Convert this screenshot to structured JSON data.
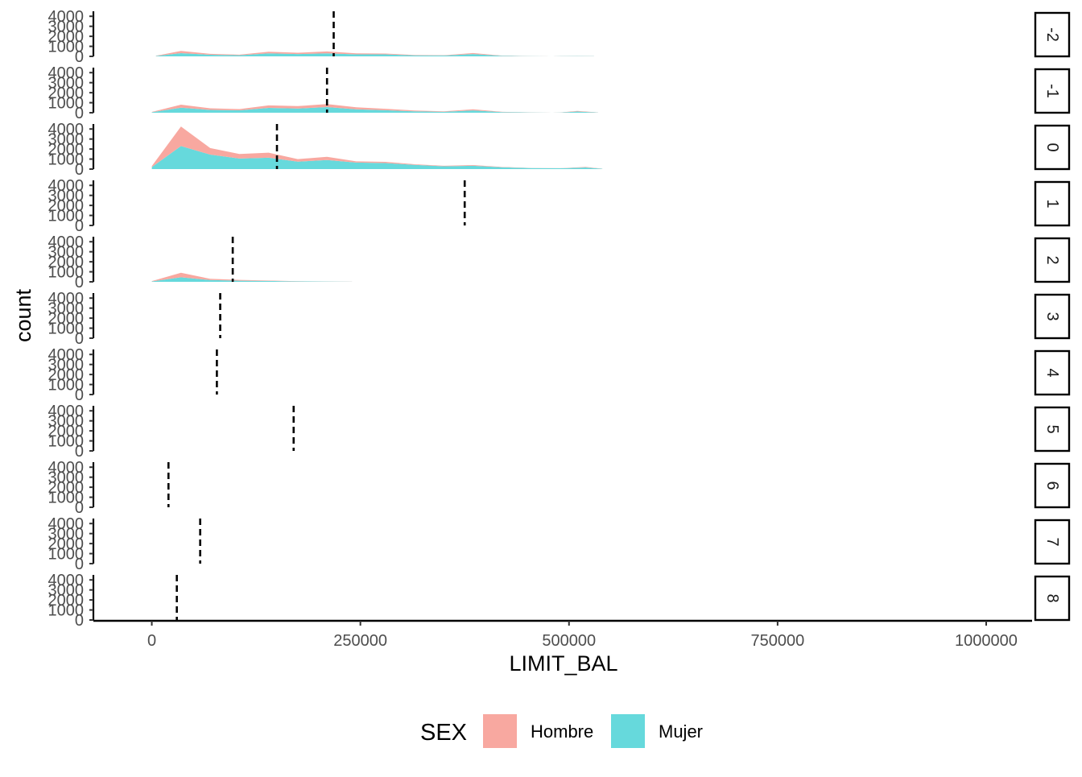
{
  "chart_data": {
    "type": "area",
    "stacked": true,
    "facet_by": "PAY_0",
    "xlabel": "LIMIT_BAL",
    "ylabel": "count",
    "xlim": [
      -70000,
      1055000
    ],
    "ylim": [
      0,
      4500
    ],
    "x_ticks": [
      0,
      250000,
      500000,
      750000,
      1000000
    ],
    "x_tick_labels": [
      "0",
      "250000",
      "500000",
      "750000",
      "1000000"
    ],
    "y_ticks": [
      0,
      1000,
      2000,
      3000,
      4000
    ],
    "y_tick_labels": [
      "0",
      "1000",
      "2000",
      "3000",
      "4000"
    ],
    "grid": false,
    "legend": {
      "title": "SEX",
      "position": "bottom",
      "entries": [
        {
          "label": "Hombre",
          "color": "#F8A8A0"
        },
        {
          "label": "Mujer",
          "color": "#66D9DC"
        }
      ]
    },
    "panels": [
      {
        "label": "-2",
        "mean_line": 218000,
        "x": [
          5000,
          35000,
          70000,
          105000,
          140000,
          175000,
          210000,
          245000,
          280000,
          315000,
          350000,
          385000,
          420000,
          450000,
          480000,
          490000,
          510000,
          530000
        ],
        "series": [
          {
            "name": "Mujer",
            "values": [
              40,
              320,
              160,
              110,
              300,
              230,
              300,
              200,
              200,
              100,
              80,
              230,
              50,
              25,
              0,
              20,
              30,
              20
            ]
          },
          {
            "name": "Hombre",
            "values": [
              20,
              230,
              90,
              60,
              160,
              130,
              190,
              100,
              80,
              40,
              30,
              100,
              20,
              10,
              0,
              10,
              10,
              10
            ]
          }
        ]
      },
      {
        "label": "-1",
        "mean_line": 210000,
        "x": [
          0,
          35000,
          70000,
          105000,
          140000,
          175000,
          210000,
          245000,
          280000,
          315000,
          350000,
          385000,
          420000,
          460000,
          480000,
          490000,
          510000,
          535000
        ],
        "series": [
          {
            "name": "Mujer",
            "values": [
              50,
              500,
              280,
              240,
              480,
              420,
              560,
              340,
              250,
              140,
              90,
              230,
              60,
              25,
              0,
              20,
              120,
              20
            ]
          },
          {
            "name": "Hombre",
            "values": [
              30,
              300,
              160,
              120,
              250,
              240,
              300,
              200,
              140,
              80,
              50,
              110,
              30,
              10,
              0,
              10,
              60,
              10
            ]
          }
        ]
      },
      {
        "label": "0",
        "mean_line": 150000,
        "x": [
          0,
          35000,
          70000,
          105000,
          140000,
          175000,
          210000,
          245000,
          280000,
          315000,
          350000,
          385000,
          420000,
          455000,
          490000,
          520000,
          540000
        ],
        "series": [
          {
            "name": "Mujer",
            "values": [
              200,
              2300,
              1450,
              1050,
              1130,
              750,
              900,
              650,
              600,
              420,
              280,
              330,
              180,
              100,
              80,
              160,
              30
            ]
          },
          {
            "name": "Hombre",
            "values": [
              100,
              1950,
              650,
              450,
              510,
              250,
              320,
              120,
              120,
              60,
              50,
              70,
              30,
              10,
              10,
              50,
              10
            ]
          }
        ]
      },
      {
        "label": "1",
        "mean_line": 375000,
        "x": [],
        "series": []
      },
      {
        "label": "2",
        "mean_line": 97000,
        "x": [
          0,
          35000,
          70000,
          105000,
          140000,
          175000,
          210000,
          240000
        ],
        "series": [
          {
            "name": "Mujer",
            "values": [
              40,
              450,
              180,
              110,
              90,
              40,
              30,
              10
            ]
          },
          {
            "name": "Hombre",
            "values": [
              30,
              450,
              120,
              80,
              40,
              20,
              10,
              5
            ]
          }
        ]
      },
      {
        "label": "3",
        "mean_line": 82000,
        "x": [],
        "series": []
      },
      {
        "label": "4",
        "mean_line": 78000,
        "x": [],
        "series": []
      },
      {
        "label": "5",
        "mean_line": 170000,
        "x": [],
        "series": []
      },
      {
        "label": "6",
        "mean_line": 20000,
        "x": [],
        "series": []
      },
      {
        "label": "7",
        "mean_line": 58000,
        "x": [],
        "series": []
      },
      {
        "label": "8",
        "mean_line": 30000,
        "x": [],
        "series": []
      }
    ]
  }
}
